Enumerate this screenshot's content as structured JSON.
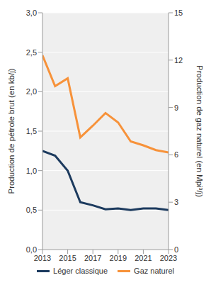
{
  "chart_data": {
    "type": "line",
    "x": [
      2013,
      2014,
      2015,
      2016,
      2017,
      2018,
      2019,
      2020,
      2021,
      2022,
      2023
    ],
    "xlim": [
      2013,
      2023
    ],
    "xticks": [
      2013,
      2015,
      2017,
      2019,
      2021,
      2023
    ],
    "y_label": "Production de pétrole brut (en kb/j)",
    "y2_label": "Production de gaz naturel (en Mpi³/j)",
    "ylim": [
      0,
      3
    ],
    "yticks": [
      {
        "value": 0,
        "label": "0,0"
      },
      {
        "value": 0.5,
        "label": "0,5"
      },
      {
        "value": 1,
        "label": "1,0"
      },
      {
        "value": 1.5,
        "label": "1,5"
      },
      {
        "value": 2,
        "label": "2,0"
      },
      {
        "value": 2.5,
        "label": "2,5"
      },
      {
        "value": 3,
        "label": "3,0"
      }
    ],
    "y2lim": [
      0,
      15
    ],
    "y2ticks": [
      0,
      3,
      6,
      9,
      12,
      15
    ],
    "grid": true,
    "legend": "bottom",
    "series": [
      {
        "name": "Léger classique",
        "color": "#1c3a5e",
        "values": [
          1.25,
          1.19,
          1.0,
          0.6,
          0.56,
          0.51,
          0.52,
          0.5,
          0.52,
          0.52,
          0.5
        ]
      },
      {
        "name": "Gaz naturel",
        "color": "#f7923a",
        "axis": "y2",
        "values": [
          12.3,
          10.35,
          10.85,
          7.1,
          7.85,
          8.65,
          8.05,
          6.85,
          6.6,
          6.3,
          6.15
        ]
      }
    ]
  }
}
